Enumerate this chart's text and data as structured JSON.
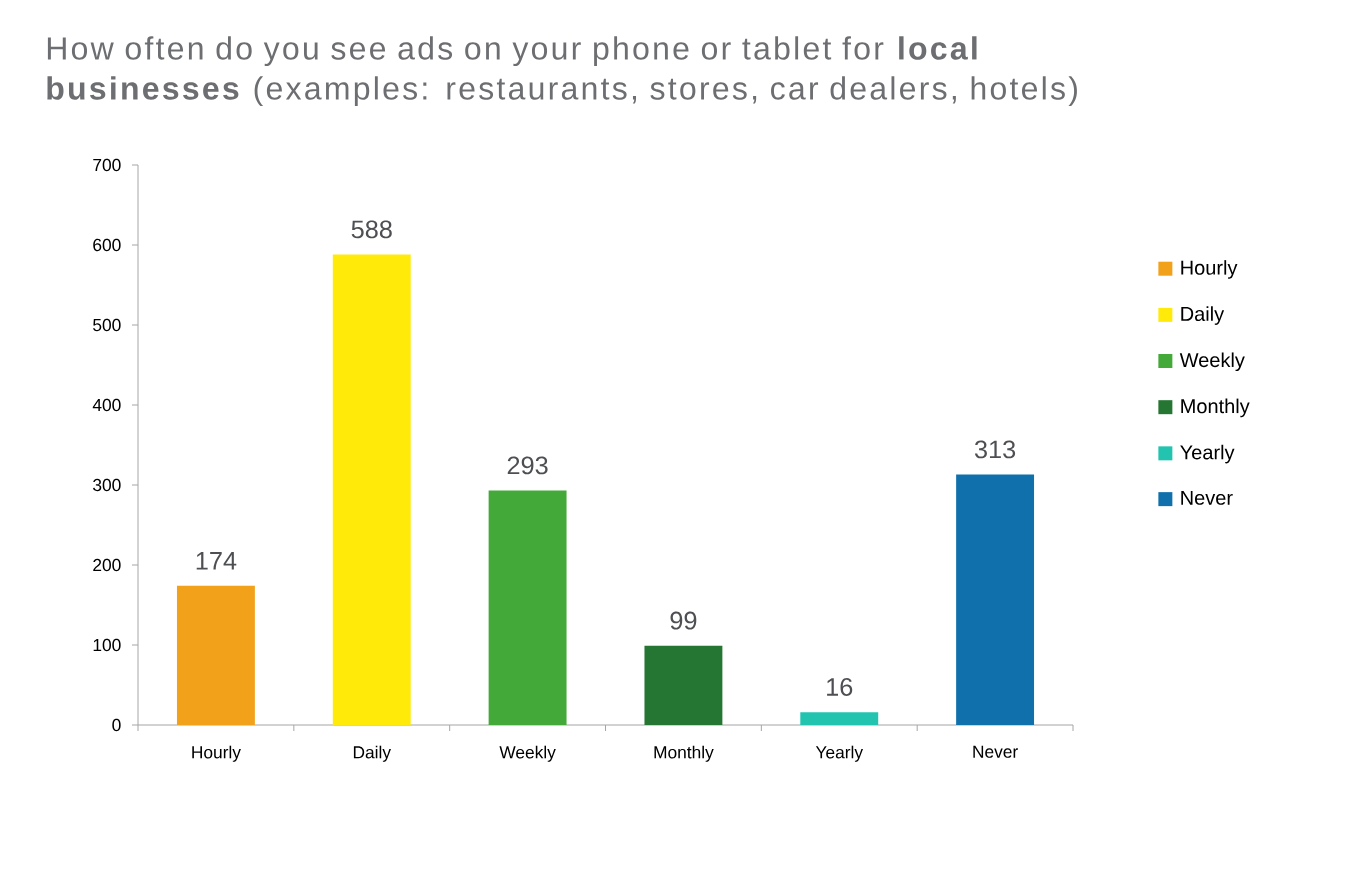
{
  "chart_data": {
    "type": "bar",
    "title": "How often do you see ads on your phone or tablet for **local businesses** (examples: restaurants, stores, car dealers, hotels)",
    "categories": [
      "Hourly",
      "Daily",
      "Weekly",
      "Monthly",
      "Yearly",
      "Never"
    ],
    "series": [
      {
        "name": "Hourly",
        "color": "#f2a11a",
        "values": [
          174,
          null,
          null,
          null,
          null,
          null
        ]
      },
      {
        "name": "Daily",
        "color": "#ffea0a",
        "values": [
          null,
          588,
          null,
          null,
          null,
          null
        ]
      },
      {
        "name": "Weekly",
        "color": "#43a938",
        "values": [
          null,
          null,
          293,
          null,
          null,
          null
        ]
      },
      {
        "name": "Monthly",
        "color": "#257632",
        "values": [
          null,
          null,
          null,
          99,
          null,
          null
        ]
      },
      {
        "name": "Yearly",
        "color": "#22c4b0",
        "values": [
          null,
          null,
          null,
          null,
          16,
          null
        ]
      },
      {
        "name": "Never",
        "color": "#0f70ab",
        "values": [
          null,
          null,
          null,
          null,
          null,
          313
        ]
      }
    ],
    "ylim": [
      0,
      700
    ],
    "yticks": [
      0,
      100,
      200,
      300,
      400,
      500,
      600,
      700
    ],
    "data_labels": true,
    "legend": "right"
  }
}
